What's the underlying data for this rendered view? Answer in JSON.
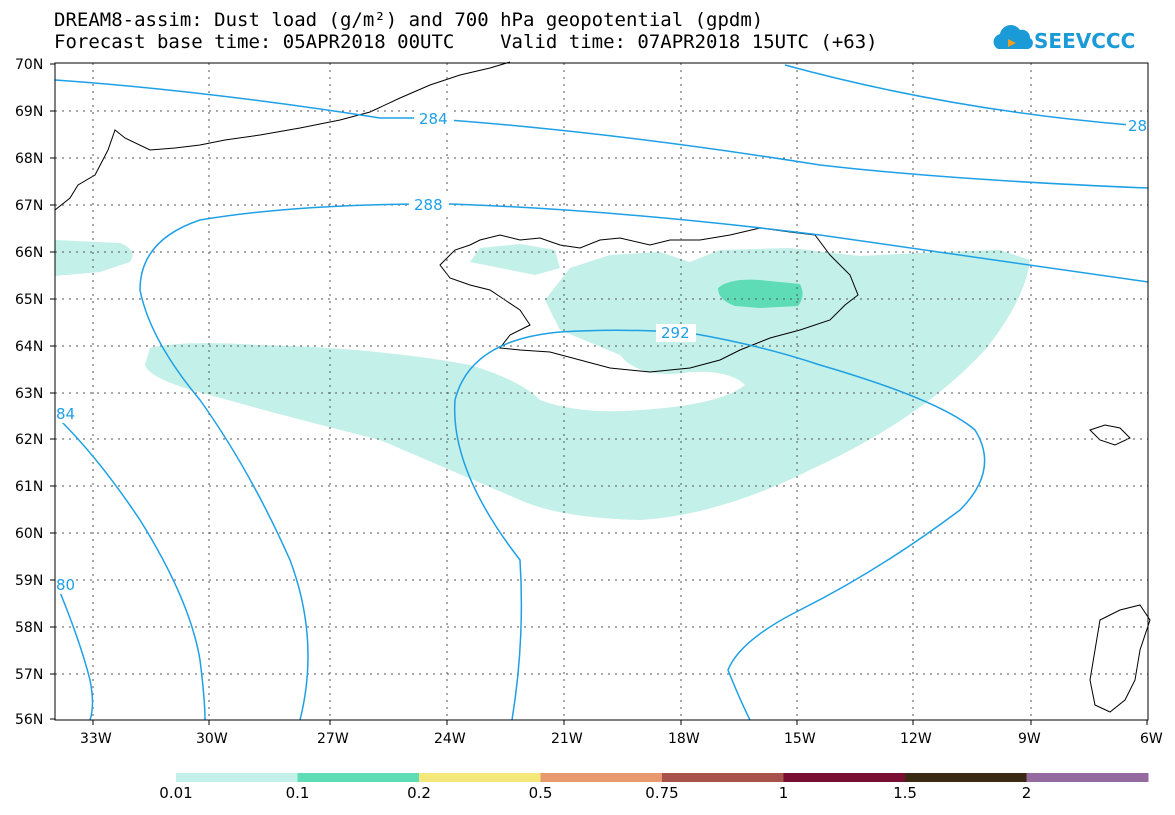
{
  "title": {
    "line1": "DREAM8-assim: Dust load (g/m²) and 700 hPa geopotential (gpdm)",
    "line2": "Forecast base time: 05APR2018 00UTC    Valid time: 07APR2018 15UTC (+63)"
  },
  "logo": {
    "text": "SEEVCCC",
    "icon": "cloud-icon",
    "color": "#1a9ad6"
  },
  "axes": {
    "lat_labels": [
      "70N",
      "69N",
      "68N",
      "67N",
      "66N",
      "65N",
      "64N",
      "63N",
      "62N",
      "61N",
      "60N",
      "59N",
      "58N",
      "57N",
      "56N"
    ],
    "lon_labels": [
      "33W",
      "30W",
      "27W",
      "24W",
      "21W",
      "18W",
      "15W",
      "12W",
      "9W",
      "6W"
    ]
  },
  "contours": {
    "variable": "700 hPa geopotential",
    "labels": [
      "284",
      "288",
      "292",
      "28",
      "84",
      "80"
    ],
    "color": "#1ea0e6"
  },
  "colorbar": {
    "thresholds": [
      "0.01",
      "0.1",
      "0.2",
      "0.5",
      "0.75",
      "1",
      "1.5",
      "2"
    ],
    "colors": [
      "#c3f0e8",
      "#5ddcb6",
      "#f5e87a",
      "#e89a6e",
      "#a7524a",
      "#7a0d32",
      "#3a2a14",
      "#946aa0"
    ]
  },
  "dust_colors": {
    "low": "#c3f0e8",
    "mid": "#5ddcb6"
  }
}
